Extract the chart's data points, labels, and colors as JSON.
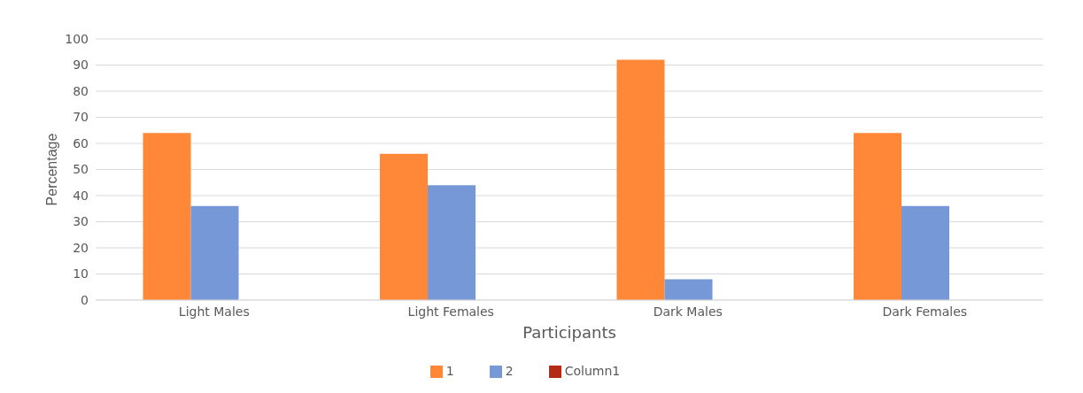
{
  "chart_data": {
    "type": "bar",
    "xlabel": "Participants",
    "ylabel": "Percentage",
    "categories": [
      "Light Males",
      "Light Females",
      "Dark Males",
      "Dark Females"
    ],
    "series": [
      {
        "name": "1",
        "color": "#fe8837",
        "values": [
          64,
          56,
          92,
          64
        ]
      },
      {
        "name": "2",
        "color": "#7698d6",
        "values": [
          36,
          44,
          8,
          36
        ]
      },
      {
        "name": "Column1",
        "color": "#b22c18",
        "values": [
          null,
          null,
          null,
          null
        ]
      }
    ],
    "ylim": [
      0,
      100
    ],
    "yticks": [
      0,
      10,
      20,
      30,
      40,
      50,
      60,
      70,
      80,
      90,
      100
    ],
    "grid": "y",
    "legend": "bottom"
  }
}
